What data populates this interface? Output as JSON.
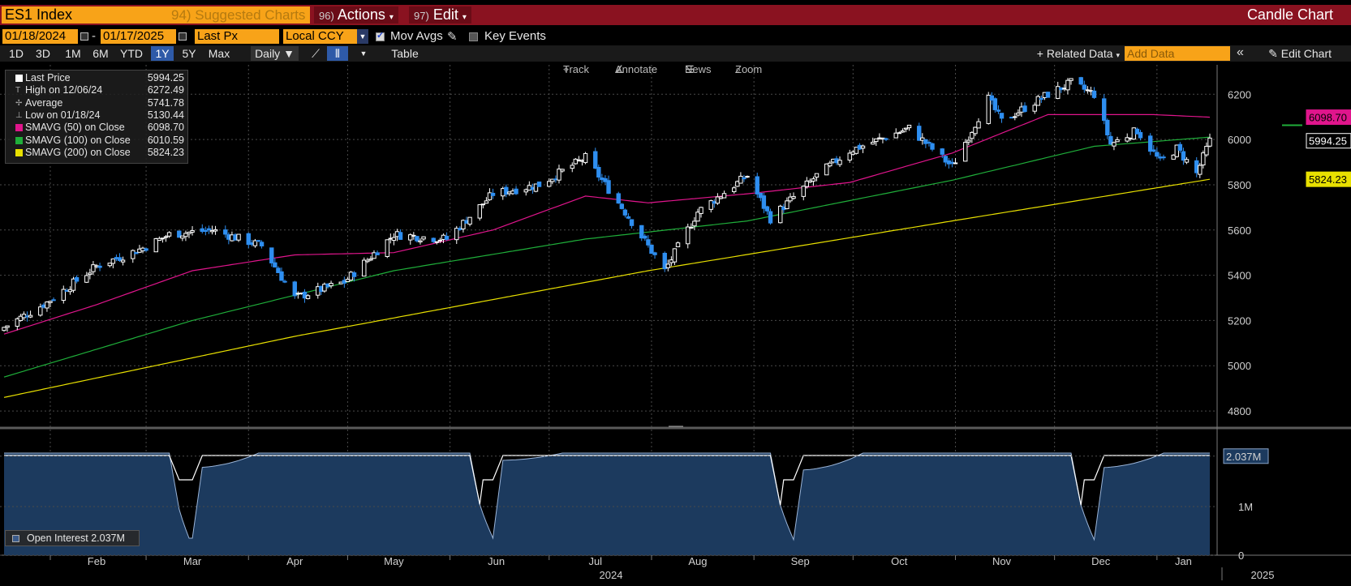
{
  "header": {
    "security": "ES1 Index",
    "suggested": "94) Suggested Charts",
    "actions_num": "96)",
    "actions": "Actions",
    "edit_num": "97)",
    "edit": "Edit",
    "chart_kind": "Candle Chart"
  },
  "controls": {
    "start_date": "01/18/2024",
    "end_date": "01/17/2025",
    "field": "Last Px",
    "currency": "Local CCY",
    "mov_avgs": "Mov Avgs",
    "key_events": "Key Events"
  },
  "ranges": [
    "1D",
    "3D",
    "1M",
    "6M",
    "YTD",
    "1Y",
    "5Y",
    "Max"
  ],
  "active_range": "1Y",
  "toolbar": {
    "period": "Daily",
    "table": "Table",
    "related": "+ Related Data",
    "add_data_placeholder": "Add Data",
    "edit_chart": "Edit Chart",
    "track": "Track",
    "annotate": "Annotate",
    "news": "News",
    "zoom": "Zoom"
  },
  "legend": [
    {
      "name": "Last Price",
      "value": "5994.25",
      "color": "#ffffff"
    },
    {
      "name": "High on 12/06/24",
      "value": "6272.49",
      "color": ""
    },
    {
      "name": "Average",
      "value": "5741.78",
      "color": ""
    },
    {
      "name": "Low on 01/18/24",
      "value": "5130.44",
      "color": ""
    },
    {
      "name": "SMAVG (50)  on Close",
      "value": "6098.70",
      "color": "#e0158c"
    },
    {
      "name": "SMAVG (100)  on Close",
      "value": "6010.59",
      "color": "#1fae3a"
    },
    {
      "name": "SMAVG (200)  on Close",
      "value": "5824.23",
      "color": "#e8e000"
    }
  ],
  "oi_legend": "Open Interest 2.037M",
  "chart_data": {
    "type": "candlestick",
    "colors": {
      "up": "#ffffff",
      "down": "#2e8ef0",
      "sma50": "#e0158c",
      "sma100": "#1fae3a",
      "sma200": "#e8e000",
      "oi": "#1c3a5e"
    },
    "price_axis": {
      "ticks": [
        4800,
        5000,
        5200,
        5400,
        5600,
        5800,
        6000,
        6200
      ],
      "ylim": [
        4725,
        6330
      ]
    },
    "last_labels": [
      {
        "value": "6098.70",
        "color": "#e0158c"
      },
      {
        "value": "5994.25",
        "color": "#ffffff"
      },
      {
        "value": "5824.23",
        "color": "#e8e000"
      }
    ],
    "month_labels": [
      "Feb",
      "Mar",
      "Apr",
      "May",
      "Jun",
      "Jul",
      "Aug",
      "Sep",
      "Oct",
      "Nov",
      "Dec",
      "Jan"
    ],
    "year_labels": [
      "2024",
      "2025"
    ],
    "close_anchors": [
      [
        "2024-01-18",
        5170
      ],
      [
        "2024-01-31",
        5280
      ],
      [
        "2024-02-15",
        5440
      ],
      [
        "2024-02-29",
        5520
      ],
      [
        "2024-03-08",
        5580
      ],
      [
        "2024-03-21",
        5600
      ],
      [
        "2024-04-05",
        5530
      ],
      [
        "2024-04-15",
        5300
      ],
      [
        "2024-04-30",
        5370
      ],
      [
        "2024-05-15",
        5580
      ],
      [
        "2024-05-31",
        5560
      ],
      [
        "2024-06-14",
        5760
      ],
      [
        "2024-06-28",
        5800
      ],
      [
        "2024-07-12",
        5920
      ],
      [
        "2024-07-24",
        5680
      ],
      [
        "2024-08-05",
        5420
      ],
      [
        "2024-08-15",
        5680
      ],
      [
        "2024-08-30",
        5840
      ],
      [
        "2024-09-06",
        5650
      ],
      [
        "2024-09-20",
        5840
      ],
      [
        "2024-09-30",
        5950
      ],
      [
        "2024-10-18",
        6050
      ],
      [
        "2024-10-31",
        5880
      ],
      [
        "2024-11-11",
        6180
      ],
      [
        "2024-11-15",
        6080
      ],
      [
        "2024-11-29",
        6200
      ],
      [
        "2024-12-06",
        6250
      ],
      [
        "2024-12-13",
        6200
      ],
      [
        "2024-12-18",
        5980
      ],
      [
        "2024-12-26",
        6040
      ],
      [
        "2025-01-02",
        5900
      ],
      [
        "2025-01-07",
        5960
      ],
      [
        "2025-01-13",
        5850
      ],
      [
        "2025-01-17",
        5994.25
      ]
    ],
    "sma50_anchors": [
      [
        "2024-01-18",
        5140
      ],
      [
        "2024-02-15",
        5270
      ],
      [
        "2024-03-15",
        5420
      ],
      [
        "2024-04-15",
        5490
      ],
      [
        "2024-05-15",
        5500
      ],
      [
        "2024-06-14",
        5600
      ],
      [
        "2024-07-12",
        5750
      ],
      [
        "2024-07-31",
        5720
      ],
      [
        "2024-08-30",
        5760
      ],
      [
        "2024-09-30",
        5810
      ],
      [
        "2024-10-31",
        5940
      ],
      [
        "2024-11-29",
        6110
      ],
      [
        "2024-12-31",
        6110
      ],
      [
        "2025-01-17",
        6098.7
      ]
    ],
    "sma100_anchors": [
      [
        "2024-01-18",
        4950
      ],
      [
        "2024-03-15",
        5200
      ],
      [
        "2024-05-15",
        5420
      ],
      [
        "2024-07-12",
        5560
      ],
      [
        "2024-08-30",
        5640
      ],
      [
        "2024-10-31",
        5820
      ],
      [
        "2024-12-13",
        5970
      ],
      [
        "2025-01-17",
        6010.59
      ]
    ],
    "sma200_anchors": [
      [
        "2024-01-18",
        4860
      ],
      [
        "2024-04-15",
        5130
      ],
      [
        "2024-07-31",
        5420
      ],
      [
        "2024-10-31",
        5640
      ],
      [
        "2025-01-17",
        5824.23
      ]
    ],
    "oi_axis": {
      "ticks": [
        "2.037M",
        "1M",
        "0"
      ],
      "max": 2.5
    },
    "open_interest": {
      "base": 2.1,
      "rolls": [
        {
          "start": "2024-03-08",
          "low": "2024-03-14",
          "end": "2024-03-15",
          "low_value": 0.35,
          "after": 1.8
        },
        {
          "start": "2024-06-07",
          "low": "2024-06-14",
          "end": "2024-06-15",
          "low_value": 0.35,
          "after": 1.95
        },
        {
          "start": "2024-09-06",
          "low": "2024-09-13",
          "end": "2024-09-14",
          "low_value": 0.32,
          "after": 1.75
        },
        {
          "start": "2024-12-06",
          "low": "2024-12-13",
          "end": "2024-12-14",
          "low_value": 0.32,
          "after": 1.8
        }
      ],
      "last": 2.037
    }
  }
}
